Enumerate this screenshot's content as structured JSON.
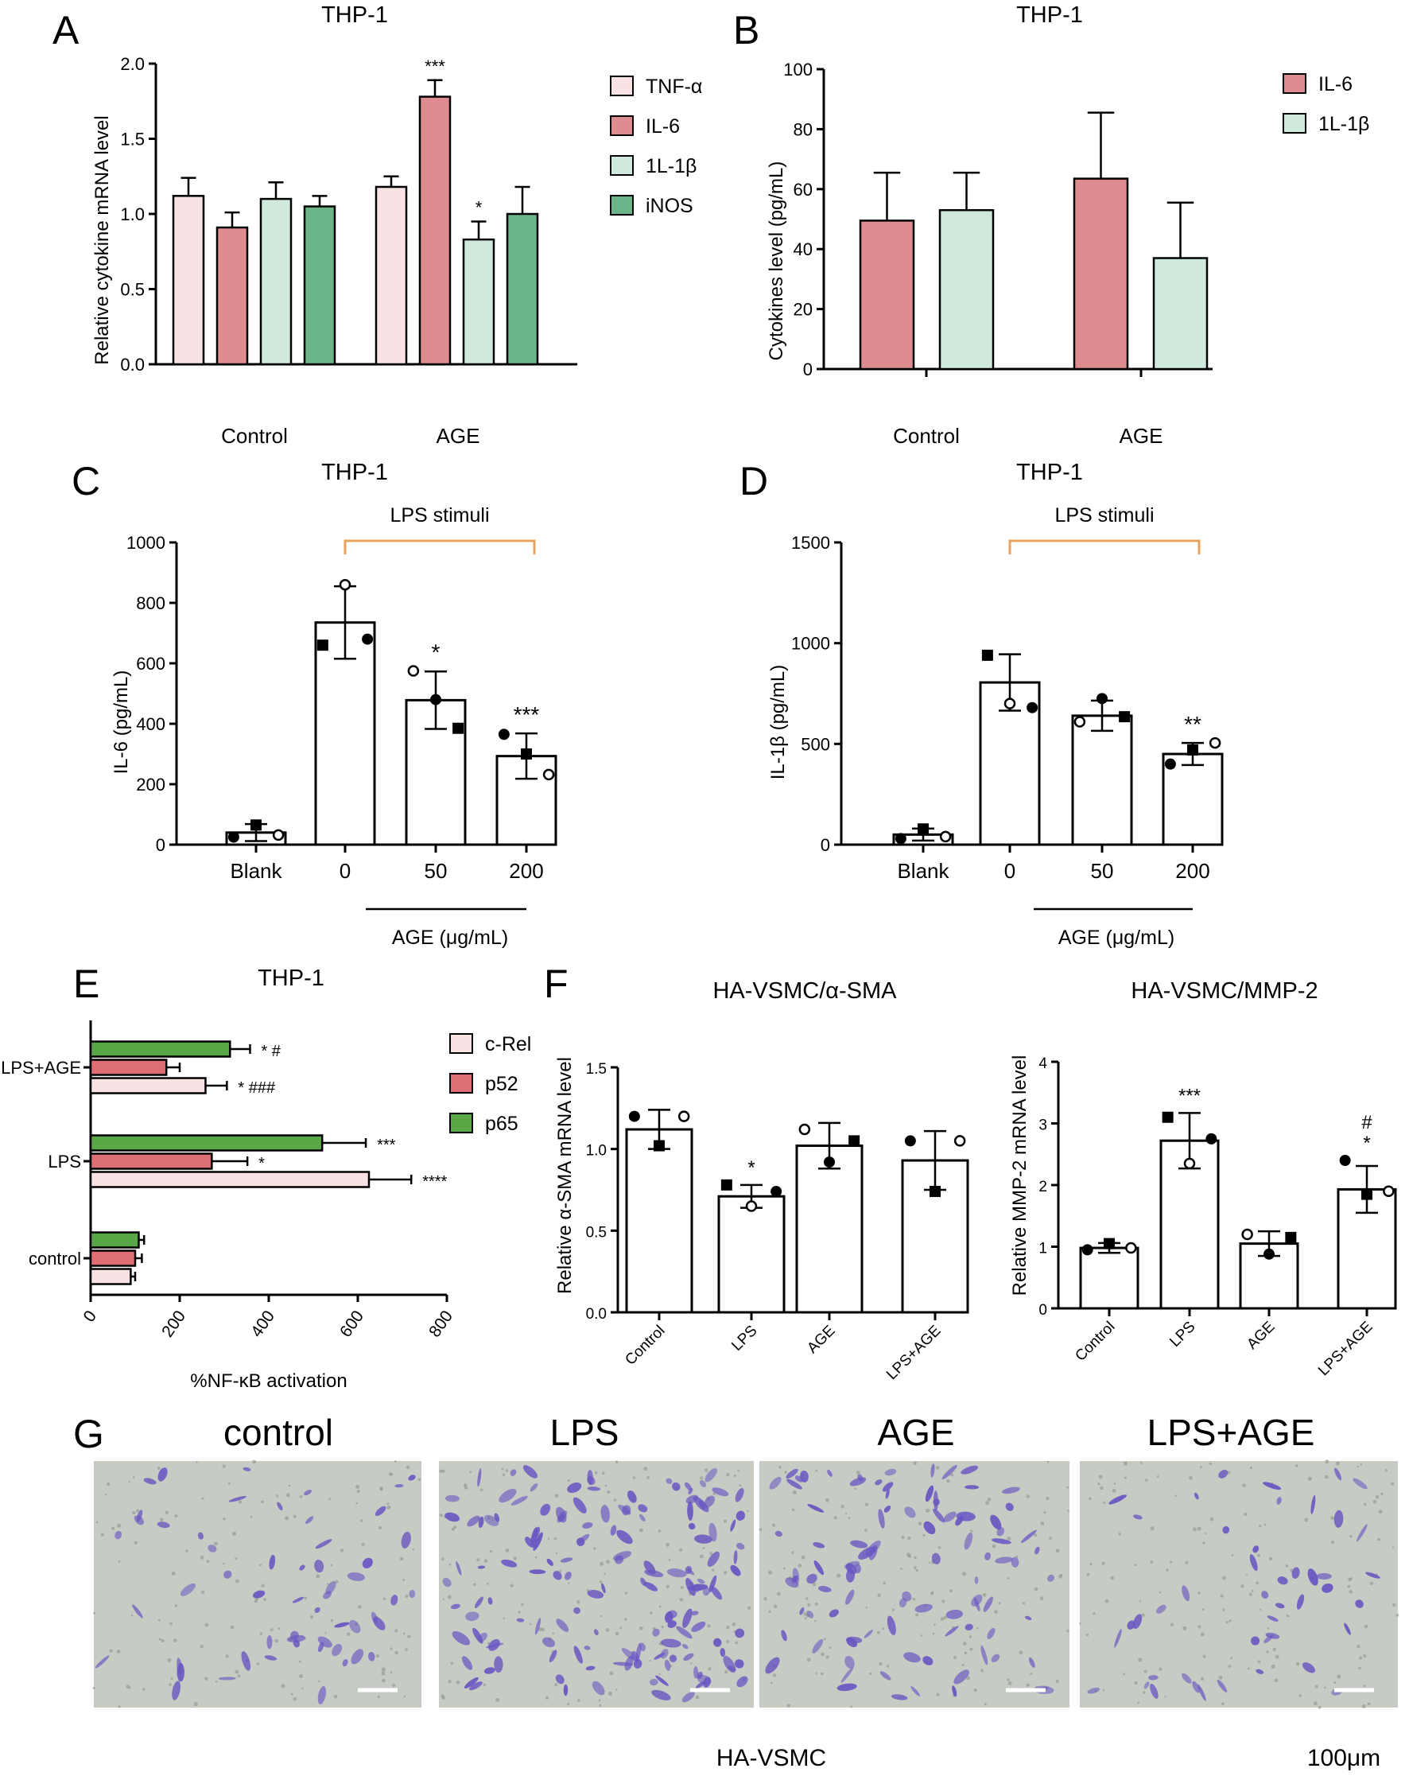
{
  "colors": {
    "tnf": "#f9e2e3",
    "il6": "#dd8c90",
    "il1b": "#cfe9dc",
    "inos": "#6cb48a",
    "crel": "#f9e2e3",
    "p52": "#dd6f74",
    "p65": "#5aa748",
    "bracket": "#e8a25a",
    "micro_bg": "#c6ccc4",
    "micro_stain": "#6a56c2"
  },
  "panels": {
    "A": {
      "letter": "A"
    },
    "B": {
      "letter": "B"
    },
    "C": {
      "letter": "C"
    },
    "D": {
      "letter": "D"
    },
    "E": {
      "letter": "E"
    },
    "F": {
      "letter": "F"
    },
    "G": {
      "letter": "G"
    }
  },
  "chart_data": [
    {
      "panel": "A",
      "type": "bar",
      "title": "THP-1",
      "ylabel": "Relative cytokine mRNA level",
      "ylim": [
        0,
        2.0
      ],
      "yticks": [
        "0.0",
        "0.5",
        "1.0",
        "1.5",
        "2.0"
      ],
      "categories": [
        "Control",
        "AGE"
      ],
      "series": [
        {
          "name": "TNF-α",
          "values": [
            1.12,
            1.18
          ],
          "err": [
            0.12,
            0.07
          ],
          "sig": [
            "",
            ""
          ]
        },
        {
          "name": "IL-6",
          "values": [
            0.91,
            1.78
          ],
          "err": [
            0.1,
            0.11
          ],
          "sig": [
            "",
            "***"
          ]
        },
        {
          "name": "1L-1β",
          "values": [
            1.1,
            0.83
          ],
          "err": [
            0.11,
            0.12
          ],
          "sig": [
            "",
            "*"
          ]
        },
        {
          "name": "iNOS",
          "values": [
            1.05,
            1.0
          ],
          "err": [
            0.07,
            0.18
          ],
          "sig": [
            "",
            ""
          ]
        }
      ],
      "legend": "right"
    },
    {
      "panel": "B",
      "type": "bar",
      "title": "THP-1",
      "ylabel": "Cytokines level (pg/mL)",
      "ylim": [
        0,
        100
      ],
      "yticks": [
        "0",
        "20",
        "40",
        "60",
        "80",
        "100"
      ],
      "categories": [
        "Control",
        "AGE"
      ],
      "series": [
        {
          "name": "IL-6",
          "values": [
            49.5,
            63.5
          ],
          "err": [
            16,
            22
          ]
        },
        {
          "name": "1L-1β",
          "values": [
            53,
            37
          ],
          "err": [
            12.5,
            18.5
          ]
        }
      ],
      "legend": "top-right"
    },
    {
      "panel": "C",
      "type": "bar",
      "title": "THP-1",
      "ylabel": "IL-6 (pg/mL)",
      "ylim": [
        0,
        1000
      ],
      "yticks": [
        "0",
        "200",
        "400",
        "600",
        "800",
        "1000"
      ],
      "categories": [
        "Blank",
        "0",
        "50",
        "200"
      ],
      "values": [
        40,
        735,
        478,
        293
      ],
      "err": [
        28,
        120,
        95,
        75
      ],
      "points": [
        [
          25,
          65,
          32
        ],
        [
          660,
          860,
          680
        ],
        [
          575,
          480,
          385
        ],
        [
          365,
          300,
          232
        ]
      ],
      "sig": [
        "",
        "",
        "*",
        "***"
      ],
      "bracket_label": "LPS stimuli",
      "xgroup_label": "AGE (μg/mL)"
    },
    {
      "panel": "D",
      "type": "bar",
      "title": "THP-1",
      "ylabel": "IL-1β (pg/mL)",
      "ylim": [
        0,
        1500
      ],
      "yticks": [
        "0",
        "500",
        "1000",
        "1500"
      ],
      "categories": [
        "Blank",
        "0",
        "50",
        "200"
      ],
      "values": [
        50,
        805,
        640,
        450
      ],
      "err": [
        30,
        140,
        75,
        55
      ],
      "points": [
        [
          30,
          78,
          40
        ],
        [
          940,
          700,
          680
        ],
        [
          610,
          725,
          635
        ],
        [
          400,
          470,
          505
        ]
      ],
      "sig": [
        "",
        "",
        "",
        "**"
      ],
      "bracket_label": "LPS stimuli",
      "xgroup_label": "AGE (μg/mL)"
    },
    {
      "panel": "E",
      "type": "bar",
      "orientation": "horizontal",
      "title": "THP-1",
      "xlabel": "%NF-κB activation",
      "xlim": [
        0,
        800
      ],
      "xticks": [
        "0",
        "200",
        "400",
        "600",
        "800"
      ],
      "categories": [
        "LPS+AGE",
        "LPS",
        "control"
      ],
      "series": [
        {
          "name": "c-Rel",
          "values": [
            258,
            625,
            90
          ],
          "err": [
            48,
            95,
            10
          ],
          "sig": [
            "*  ###",
            "****",
            ""
          ]
        },
        {
          "name": "p52",
          "values": [
            170,
            272,
            100
          ],
          "err": [
            30,
            80,
            15
          ],
          "sig": [
            "",
            "*",
            ""
          ]
        },
        {
          "name": "p65",
          "values": [
            313,
            520,
            108
          ],
          "err": [
            45,
            98,
            12
          ],
          "sig": [
            "*  #",
            "***",
            ""
          ]
        }
      ],
      "legend": "right"
    },
    {
      "panel": "F1",
      "type": "bar",
      "title": "HA-VSMC/α-SMA",
      "ylabel": "Relative α-SMA mRNA level",
      "ylim": [
        0,
        1.5
      ],
      "yticks": [
        "0.0",
        "0.5",
        "1.0",
        "1.5"
      ],
      "categories": [
        "Control",
        "LPS",
        "AGE",
        "LPS+AGE"
      ],
      "values": [
        1.12,
        0.71,
        1.02,
        0.93
      ],
      "err": [
        0.12,
        0.07,
        0.14,
        0.18
      ],
      "points": [
        [
          1.2,
          1.02,
          1.2
        ],
        [
          0.78,
          0.65,
          0.74
        ],
        [
          1.12,
          0.92,
          1.05
        ],
        [
          1.05,
          0.74,
          1.05
        ]
      ],
      "sig": [
        "",
        "*",
        "",
        ""
      ]
    },
    {
      "panel": "F2",
      "type": "bar",
      "title": "HA-VSMC/MMP-2",
      "ylabel": "Relative MMP-2 mRNA level",
      "ylim": [
        0,
        4
      ],
      "yticks": [
        "0",
        "1",
        "2",
        "3",
        "4"
      ],
      "categories": [
        "Control",
        "LPS",
        "AGE",
        "LPS+AGE"
      ],
      "values": [
        0.98,
        2.72,
        1.05,
        1.93
      ],
      "err": [
        0.08,
        0.45,
        0.2,
        0.38
      ],
      "points": [
        [
          0.95,
          1.05,
          0.98
        ],
        [
          3.1,
          2.35,
          2.75
        ],
        [
          1.2,
          0.88,
          1.15
        ],
        [
          2.4,
          1.85,
          1.9
        ]
      ],
      "sig": [
        "",
        "***",
        "",
        "#\n*"
      ]
    }
  ],
  "micrographs": {
    "labels": [
      "control",
      "LPS",
      "AGE",
      "LPS+AGE"
    ],
    "densities": [
      55,
      150,
      95,
      45
    ],
    "caption": "HA-VSMC",
    "scale_label": "100μm"
  }
}
